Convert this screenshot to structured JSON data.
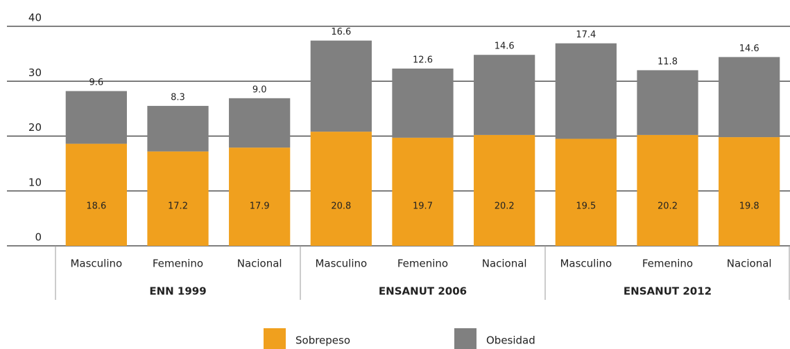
{
  "chart_data": {
    "type": "stacked_bar",
    "groups": [
      {
        "name": "ENN 1999",
        "categories": [
          "Masculino",
          "Femenino",
          "Nacional"
        ]
      },
      {
        "name": "ENSANUT 2006",
        "categories": [
          "Masculino",
          "Femenino",
          "Nacional"
        ]
      },
      {
        "name": "ENSANUT 2012",
        "categories": [
          "Masculino",
          "Femenino",
          "Nacional"
        ]
      }
    ],
    "series": [
      {
        "name": "Sobrepeso",
        "color": "#f0a01e",
        "values": [
          18.6,
          17.2,
          17.9,
          20.8,
          19.7,
          20.2,
          19.5,
          20.2,
          19.8
        ]
      },
      {
        "name": "Obesidad",
        "color": "#808080",
        "values": [
          9.6,
          8.3,
          9.0,
          16.6,
          12.6,
          14.6,
          17.4,
          11.8,
          14.6
        ],
        "value_labels": [
          "9.6",
          "8.3",
          "9.0",
          "16.6",
          "12.6",
          "14.6",
          "17.4",
          "11.8",
          "14.6"
        ]
      }
    ],
    "ylim": [
      0,
      40
    ],
    "yticks": [
      0,
      10,
      20,
      30,
      40
    ],
    "grid": true,
    "legend": "bottom"
  }
}
